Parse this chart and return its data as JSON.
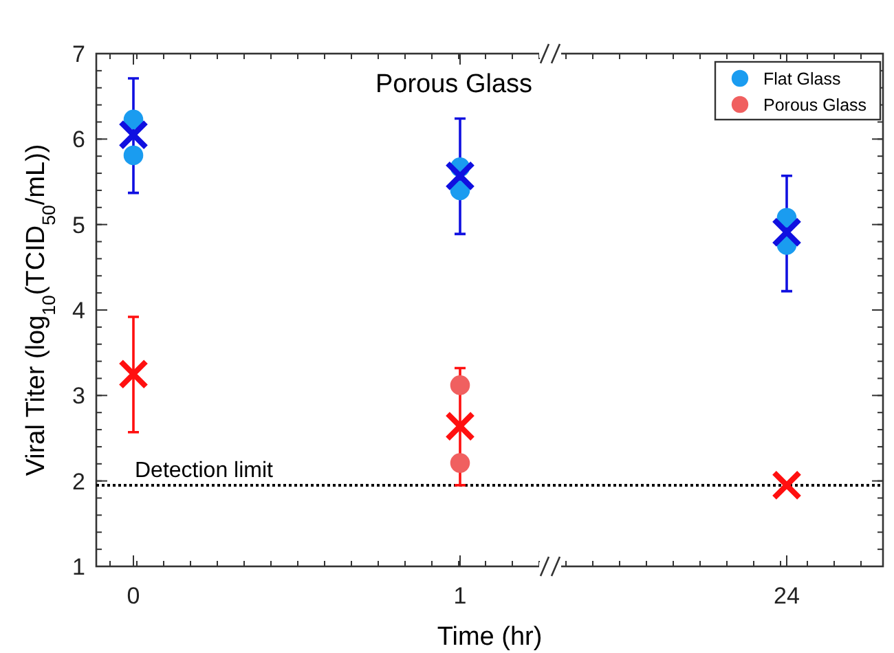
{
  "chart_data": {
    "type": "scatter",
    "title": "Porous Glass",
    "xlabel": "Time (hr)",
    "ylabel": "Viral Titer (log$_{10}$(TCID$_{50}$/mL))",
    "categories": [
      "0",
      "1",
      "24"
    ],
    "series": [
      {
        "name": "Flat Glass",
        "color": "#1a9cf0",
        "marker": "circle",
        "x": [
          "0",
          "0",
          "1",
          "1",
          "24",
          "24"
        ],
        "values": [
          6.23,
          5.81,
          5.67,
          5.4,
          5.08,
          4.76
        ]
      },
      {
        "name": "Porous Glass",
        "color": "#f06060",
        "marker": "circle",
        "x": [
          "1",
          "1"
        ],
        "values": [
          3.12,
          2.21
        ]
      },
      {
        "color": "#1010e0",
        "marker": "cross",
        "x": [
          "0",
          "1",
          "24"
        ],
        "values": [
          6.05,
          5.57,
          4.91
        ],
        "errors": [
          [
            5.37,
            6.71
          ],
          [
            4.89,
            6.24
          ],
          [
            4.22,
            5.57
          ]
        ]
      },
      {
        "color": "#ff1010",
        "marker": "cross",
        "x": [
          "0",
          "1",
          "24"
        ],
        "values": [
          3.25,
          2.64,
          1.95
        ],
        "errors": [
          [
            2.57,
            3.92
          ],
          [
            1.95,
            3.32
          ],
          null
        ]
      }
    ],
    "ylim": [
      1,
      7
    ],
    "yticks": [
      1,
      2,
      3,
      4,
      5,
      6,
      7
    ],
    "grid": false,
    "legend": "top right",
    "ref_lines": [
      {
        "axis": "y",
        "value": 1.95,
        "label": "Detection limit",
        "line_style": "dotted",
        "color": "#000000"
      }
    ]
  }
}
